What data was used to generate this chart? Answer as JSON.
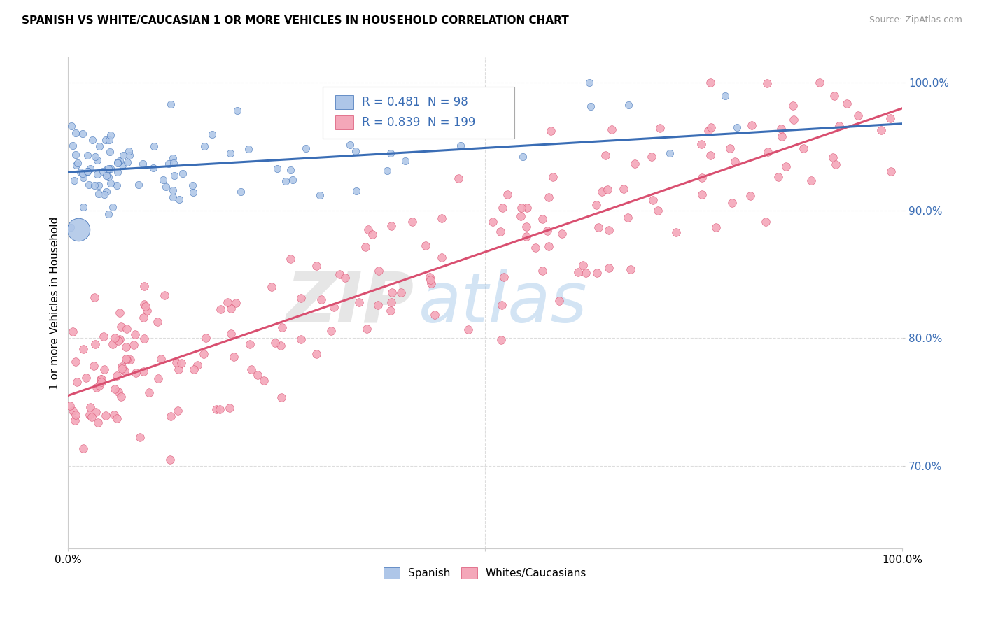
{
  "title": "SPANISH VS WHITE/CAUCASIAN 1 OR MORE VEHICLES IN HOUSEHOLD CORRELATION CHART",
  "source": "Source: ZipAtlas.com",
  "ylabel": "1 or more Vehicles in Household",
  "xlim": [
    0.0,
    1.0
  ],
  "ylim": [
    0.635,
    1.02
  ],
  "yticks": [
    0.7,
    0.8,
    0.9,
    1.0
  ],
  "ytick_labels": [
    "70.0%",
    "80.0%",
    "90.0%",
    "100.0%"
  ],
  "blue_R": 0.481,
  "blue_N": 98,
  "pink_R": 0.839,
  "pink_N": 199,
  "blue_color": "#aec6e8",
  "blue_line_color": "#3a6db5",
  "pink_color": "#f4a7b9",
  "pink_line_color": "#d94f70",
  "legend_label_blue": "Spanish",
  "legend_label_pink": "Whites/Caucasians",
  "watermark_zip": "ZIP",
  "watermark_atlas": "atlas",
  "background_color": "#ffffff",
  "grid_color": "#dddddd",
  "blue_line_start_y": 0.93,
  "blue_line_end_y": 0.968,
  "pink_line_start_y": 0.755,
  "pink_line_end_y": 0.98
}
